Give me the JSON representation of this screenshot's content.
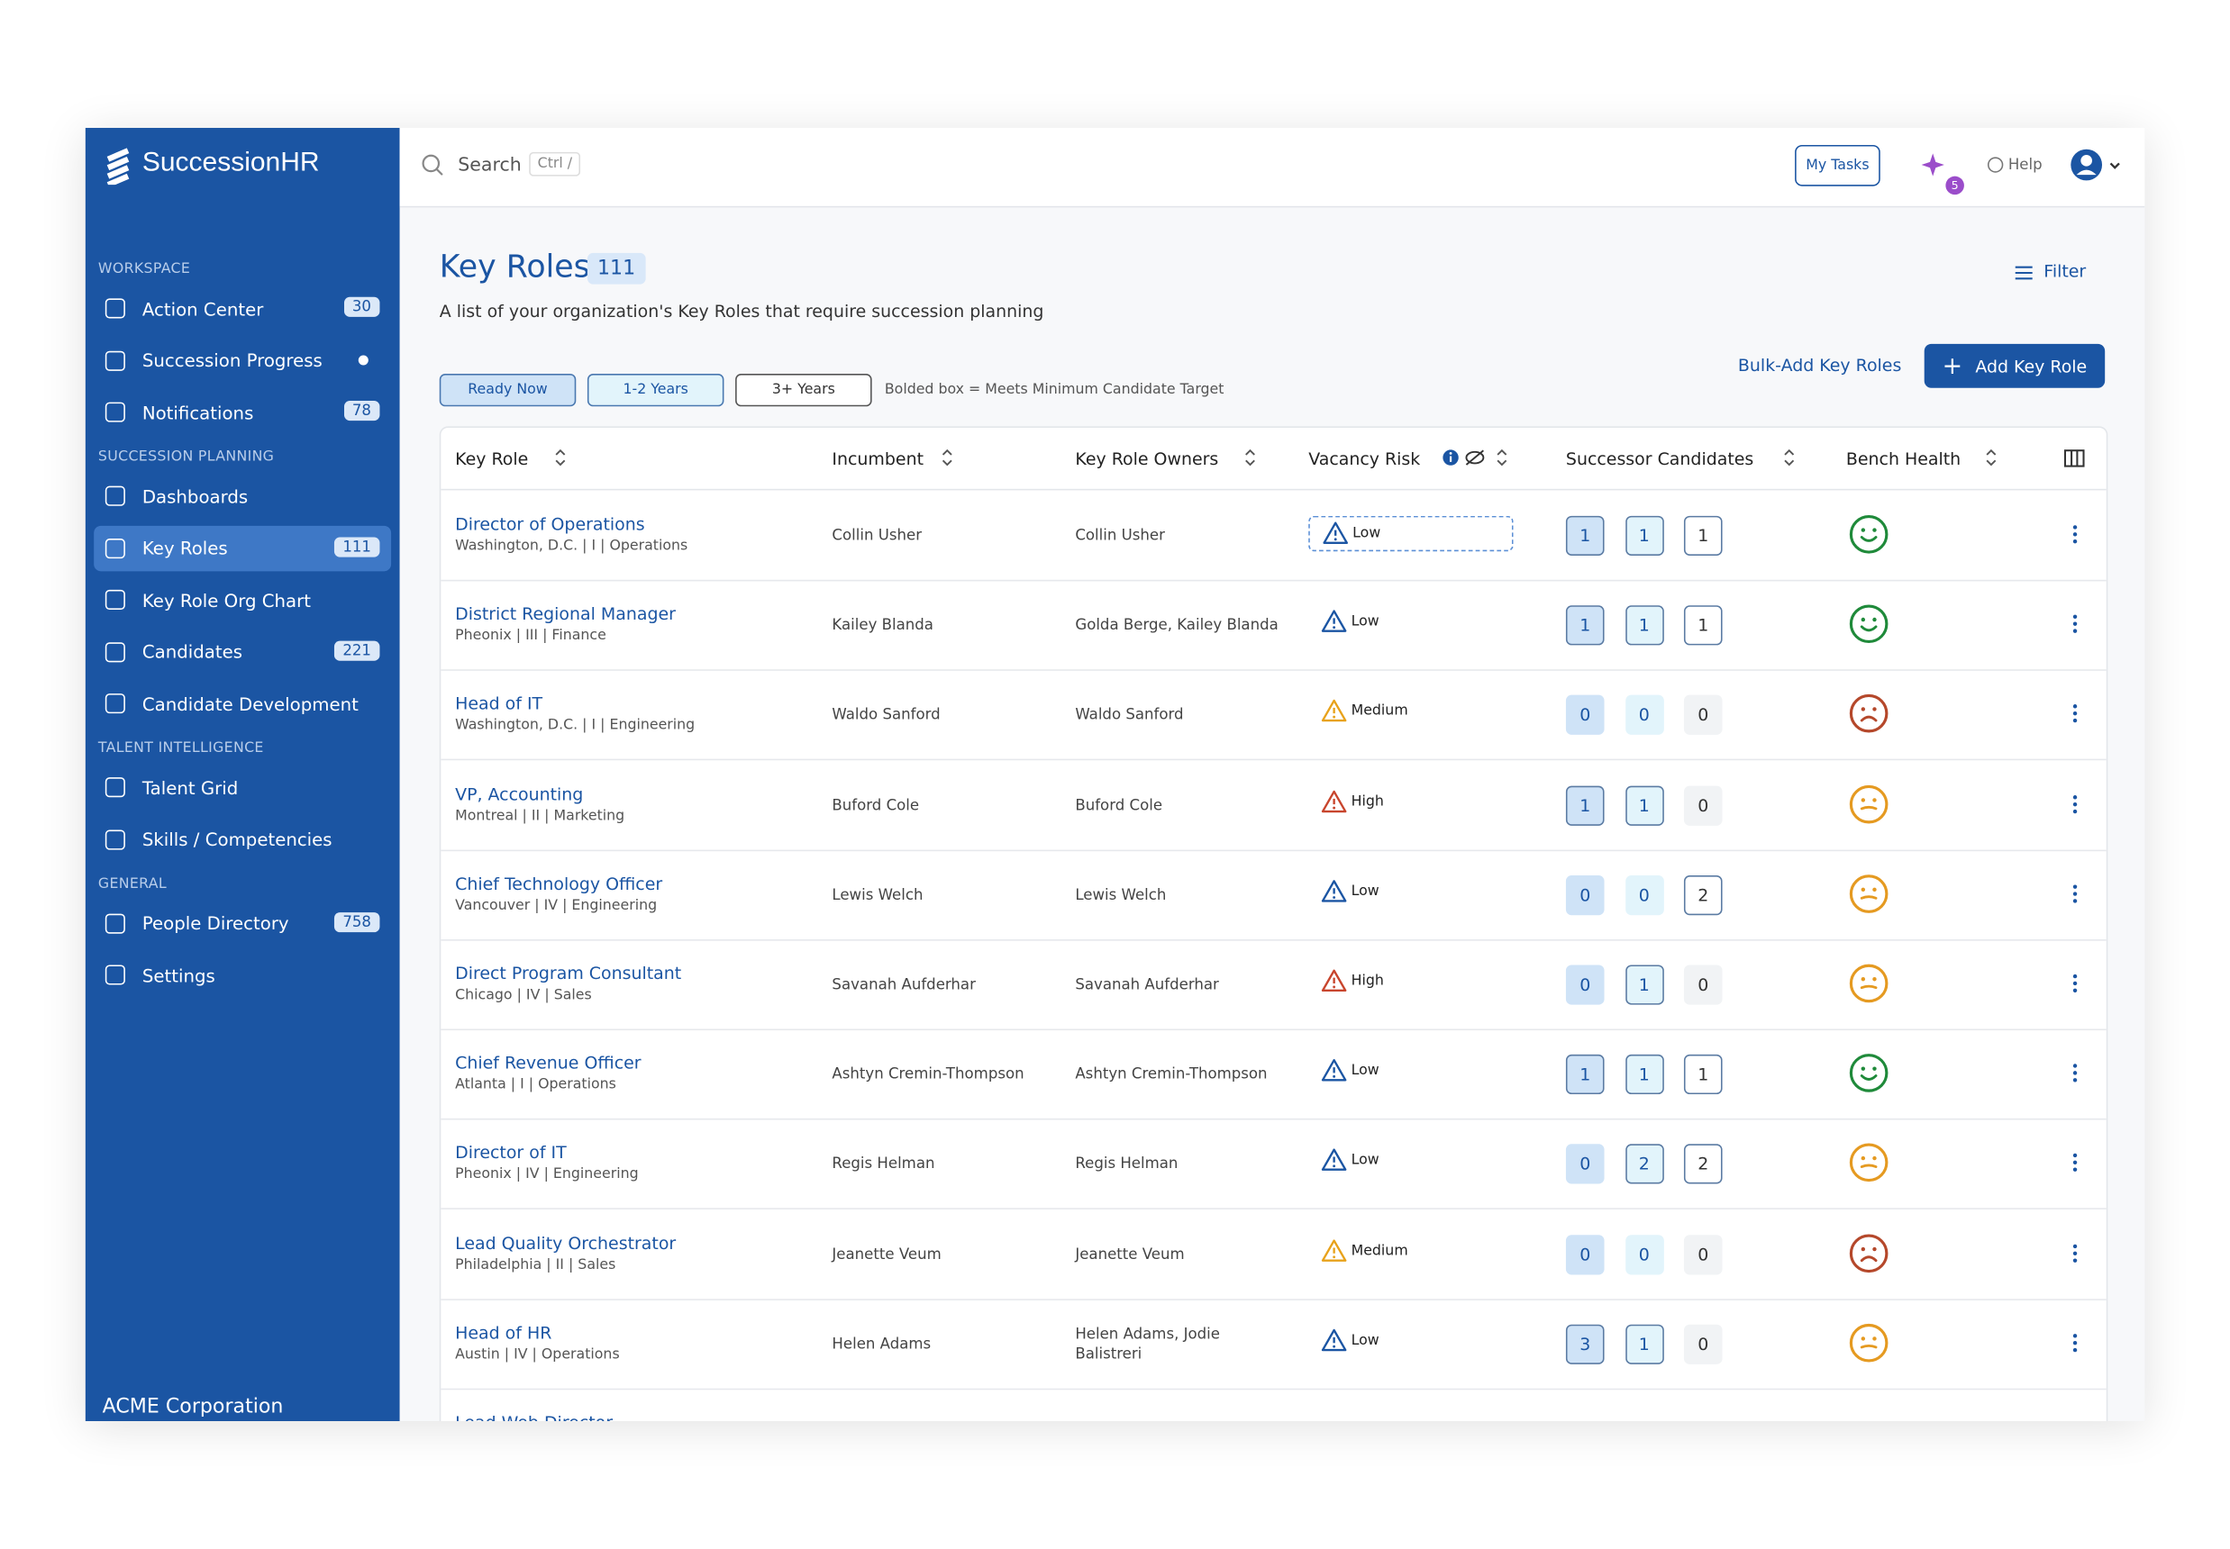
{
  "brand": "SuccessionHR",
  "search": {
    "placeholder": "Search",
    "shortcut": "Ctrl /"
  },
  "header": {
    "tasks": "My Tasks",
    "ai_badge": 5,
    "help": "Help"
  },
  "sidebar": {
    "sections": [
      {
        "label": "WORKSPACE",
        "items": [
          {
            "name": "Action Center",
            "badge": 30
          },
          {
            "name": "Succession Progress",
            "dot": true
          },
          {
            "name": "Notifications",
            "badge": 78
          }
        ]
      },
      {
        "label": "SUCCESSION PLANNING",
        "items": [
          {
            "name": "Dashboards"
          },
          {
            "name": "Key Roles",
            "badge": 111,
            "active": true
          },
          {
            "name": "Key Role Org Chart"
          },
          {
            "name": "Candidates",
            "badge": 221
          },
          {
            "name": "Candidate Development"
          }
        ]
      },
      {
        "label": "TALENT INTELLIGENCE",
        "items": [
          {
            "name": "Talent Grid"
          },
          {
            "name": "Skills / Competencies"
          }
        ]
      },
      {
        "label": "GENERAL",
        "items": [
          {
            "name": "People Directory",
            "badge": 758
          },
          {
            "name": "Settings"
          }
        ]
      }
    ],
    "footer": "ACME Corporation"
  },
  "page": {
    "title": "Key Roles",
    "count": 111,
    "description": "A list of your organization's Key Roles that require succession planning",
    "filter": "Filter",
    "bulk_add": "Bulk-Add Key Roles",
    "add": "Add Key Role",
    "legend": [
      "Ready Now",
      "1-2 Years",
      "3+ Years"
    ],
    "legend_note": "Bolded box = Meets Minimum Candidate Target"
  },
  "table": {
    "columns": [
      "Key Role",
      "Incumbent",
      "Key Role Owners",
      "Vacancy Risk",
      "Successor Candidates",
      "Bench Health"
    ],
    "rows": [
      {
        "role": "Director of Operations",
        "location": "Washington, D.C. | I | Operations",
        "incumbent": "Collin Usher",
        "owners": "Collin Usher",
        "risk": "Low",
        "successors": [
          1,
          1,
          1
        ],
        "health": "good"
      },
      {
        "role": "District Regional Manager",
        "location": "Pheonix | III | Finance",
        "incumbent": "Kailey Blanda",
        "owners": "Golda Berge, Kailey Blanda",
        "risk": "Low",
        "successors": [
          1,
          1,
          1
        ],
        "health": "good"
      },
      {
        "role": "Head of IT",
        "location": "Washington, D.C. | I | Engineering",
        "incumbent": "Waldo Sanford",
        "owners": "Waldo Sanford",
        "risk": "Medium",
        "successors": [
          0,
          0,
          0
        ],
        "health": "bad"
      },
      {
        "role": "VP, Accounting",
        "location": "Montreal | II | Marketing",
        "incumbent": "Buford Cole",
        "owners": "Buford Cole",
        "risk": "High",
        "successors": [
          1,
          1,
          0
        ],
        "health": "neutral"
      },
      {
        "role": "Chief Technology Officer",
        "location": "Vancouver | IV | Engineering",
        "incumbent": "Lewis Welch",
        "owners": "Lewis Welch",
        "risk": "Low",
        "successors": [
          0,
          0,
          2
        ],
        "health": "neutral"
      },
      {
        "role": "Direct Program Consultant",
        "location": "Chicago | IV | Sales",
        "incumbent": "Savanah Aufderhar",
        "owners": "Savanah Aufderhar",
        "risk": "High",
        "successors": [
          0,
          1,
          0
        ],
        "health": "neutral"
      },
      {
        "role": "Chief Revenue Officer",
        "location": "Atlanta | I | Operations",
        "incumbent": "Ashtyn Cremin-Thompson",
        "owners": "Ashtyn Cremin-Thompson",
        "risk": "Low",
        "successors": [
          1,
          1,
          1
        ],
        "health": "good"
      },
      {
        "role": "Director of IT",
        "location": "Pheonix | IV | Engineering",
        "incumbent": "Regis Helman",
        "owners": "Regis Helman",
        "risk": "Low",
        "successors": [
          0,
          2,
          2
        ],
        "health": "neutral"
      },
      {
        "role": "Lead Quality Orchestrator",
        "location": "Philadelphia | II | Sales",
        "incumbent": "Jeanette Veum",
        "owners": "Jeanette Veum",
        "risk": "Medium",
        "successors": [
          0,
          0,
          0
        ],
        "health": "bad"
      },
      {
        "role": "Head of HR",
        "location": "Austin | IV | Operations",
        "incumbent": "Helen Adams",
        "owners": "Helen Adams, Jodie Balistreri",
        "risk": "Low",
        "successors": [
          3,
          1,
          0
        ],
        "health": "neutral"
      },
      {
        "role": "Lead Web Director"
      }
    ]
  }
}
